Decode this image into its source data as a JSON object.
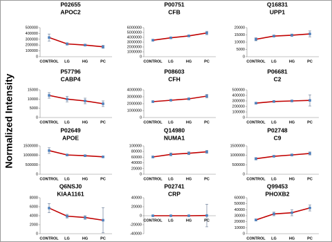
{
  "ylabel": "Normalized Intensity",
  "chart_data": [
    {
      "type": "line",
      "title": "P02655",
      "subtitle": "APOC2",
      "categories": [
        "CONTROL",
        "LG",
        "HG",
        "PC"
      ],
      "values": [
        330000,
        220000,
        200000,
        170000
      ],
      "errors": [
        60000,
        20000,
        15000,
        25000
      ],
      "ylim": [
        0,
        500000
      ],
      "yticks": [
        0,
        100000,
        200000,
        300000,
        400000,
        500000
      ],
      "color": "#c00000",
      "marker_color": "#4f81bd"
    },
    {
      "type": "line",
      "title": "P00751",
      "subtitle": "CFB",
      "categories": [
        "CONTROL",
        "LG",
        "HG",
        "PC"
      ],
      "values": [
        3400000,
        3900000,
        4300000,
        4900000
      ],
      "errors": [
        200000,
        150000,
        200000,
        350000
      ],
      "ylim": [
        0,
        6000000
      ],
      "yticks": [
        0,
        1000000,
        2000000,
        3000000,
        4000000,
        5000000,
        6000000
      ],
      "color": "#c00000",
      "marker_color": "#4f81bd"
    },
    {
      "type": "line",
      "title": "Q16831",
      "subtitle": "UPP1",
      "categories": [
        "CONTROL",
        "LG",
        "HG",
        "PC"
      ],
      "values": [
        12000,
        14200,
        14800,
        15700
      ],
      "errors": [
        1000,
        700,
        800,
        2000
      ],
      "ylim": [
        0,
        20000
      ],
      "yticks": [
        0,
        5000,
        10000,
        15000,
        20000
      ],
      "color": "#c00000",
      "marker_color": "#4f81bd"
    },
    {
      "type": "line",
      "title": "P57796",
      "subtitle": "CABP4",
      "categories": [
        "CONTROL",
        "LG",
        "HG",
        "PC"
      ],
      "values": [
        12000,
        10000,
        9000,
        7500
      ],
      "errors": [
        1500,
        1500,
        1500,
        1500
      ],
      "ylim": [
        0,
        15000
      ],
      "yticks": [
        0,
        5000,
        10000,
        15000
      ],
      "color": "#c00000",
      "marker_color": "#4f81bd"
    },
    {
      "type": "line",
      "title": "P08603",
      "subtitle": "CFH",
      "categories": [
        "CONTROL",
        "LG",
        "HG",
        "PC"
      ],
      "values": [
        2300000,
        2500000,
        2700000,
        3100000
      ],
      "errors": [
        100000,
        100000,
        150000,
        250000
      ],
      "ylim": [
        0,
        4000000
      ],
      "yticks": [
        0,
        1000000,
        2000000,
        3000000,
        4000000
      ],
      "color": "#c00000",
      "marker_color": "#4f81bd"
    },
    {
      "type": "line",
      "title": "P06681",
      "subtitle": "C2",
      "categories": [
        "CONTROL",
        "LG",
        "HG",
        "PC"
      ],
      "values": [
        260000,
        290000,
        300000,
        310000
      ],
      "errors": [
        15000,
        15000,
        15000,
        100000
      ],
      "ylim": [
        0,
        500000
      ],
      "yticks": [
        0,
        100000,
        200000,
        300000,
        400000,
        500000
      ],
      "color": "#c00000",
      "marker_color": "#4f81bd"
    },
    {
      "type": "line",
      "title": "P02649",
      "subtitle": "APOE",
      "categories": [
        "CONTROL",
        "LG",
        "HG",
        "PC"
      ],
      "values": [
        1250000,
        1020000,
        980000,
        920000
      ],
      "errors": [
        150000,
        40000,
        40000,
        40000
      ],
      "ylim": [
        0,
        1500000
      ],
      "yticks": [
        0,
        500000,
        1000000,
        1500000
      ],
      "color": "#c00000",
      "marker_color": "#4f81bd"
    },
    {
      "type": "line",
      "title": "Q14980",
      "subtitle": "NUMA1",
      "categories": [
        "CONTROL",
        "LG",
        "HG",
        "PC"
      ],
      "values": [
        61000,
        70000,
        74000,
        79000
      ],
      "errors": [
        3000,
        5000,
        5000,
        5000
      ],
      "ylim": [
        0,
        100000
      ],
      "yticks": [
        0,
        20000,
        40000,
        60000,
        80000,
        100000
      ],
      "color": "#c00000",
      "marker_color": "#4f81bd"
    },
    {
      "type": "line",
      "title": "P02748",
      "subtitle": "C9",
      "categories": [
        "CONTROL",
        "LG",
        "HG",
        "PC"
      ],
      "values": [
        820000,
        950000,
        1020000,
        1100000
      ],
      "errors": [
        60000,
        40000,
        50000,
        80000
      ],
      "ylim": [
        0,
        1500000
      ],
      "yticks": [
        0,
        500000,
        1000000,
        1500000
      ],
      "color": "#c00000",
      "marker_color": "#4f81bd"
    },
    {
      "type": "line",
      "title": "Q6NSJ0",
      "subtitle": "KIAA1161",
      "categories": [
        "CONTROL",
        "LG",
        "HG",
        "PC"
      ],
      "values": [
        5700,
        3900,
        3600,
        3000
      ],
      "errors": [
        1000,
        400,
        400,
        2800
      ],
      "ylim": [
        0,
        8000
      ],
      "yticks": [
        0,
        2000,
        4000,
        6000,
        8000
      ],
      "color": "#c00000",
      "marker_color": "#4f81bd"
    },
    {
      "type": "line",
      "title": "P02741",
      "subtitle": "CRP",
      "categories": [
        "CONTROL",
        "LG",
        "HG",
        "PC"
      ],
      "values": [
        0,
        0,
        0,
        500
      ],
      "errors": [
        1000,
        1000,
        1000,
        25000
      ],
      "ylim": [
        -40000,
        40000
      ],
      "yticks": [
        -40000,
        -20000,
        0,
        20000,
        40000
      ],
      "color": "#c00000",
      "marker_color": "#4f81bd"
    },
    {
      "type": "line",
      "title": "Q99453",
      "subtitle": "PHOXB2",
      "categories": [
        "CONTROL",
        "LG",
        "HG",
        "PC"
      ],
      "values": [
        23000,
        33000,
        35000,
        43000
      ],
      "errors": [
        1500,
        3000,
        5000,
        5000
      ],
      "ylim": [
        0,
        60000
      ],
      "yticks": [
        0,
        10000,
        20000,
        30000,
        40000,
        50000,
        60000
      ],
      "color": "#c00000",
      "marker_color": "#4f81bd"
    }
  ]
}
